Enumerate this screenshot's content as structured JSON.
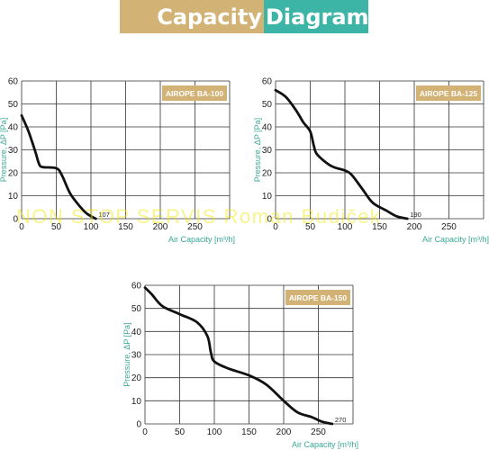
{
  "banner": {
    "left": "Capacity",
    "right": "Diagram"
  },
  "watermark": "NON STOP SERVIS Roman Budiček",
  "colors": {
    "gold": "#d3b275",
    "teal": "#3cb5a6",
    "axis_label": "#3aa896",
    "curve": "#111111"
  },
  "chart_data": [
    {
      "type": "line",
      "legend_box": "AIROPE BA-100",
      "xlabel": "Air Capacity [m³/h]",
      "ylabel": "Pressure, ΔP [Pa]",
      "xlim": [
        0,
        300
      ],
      "ylim": [
        0,
        60
      ],
      "x_ticks": [
        "0",
        "50",
        "100",
        "150",
        "200",
        "250"
      ],
      "y_ticks": [
        "0",
        "10",
        "20",
        "30",
        "40",
        "50",
        "60"
      ],
      "grid": true,
      "end_label": "107",
      "points": [
        [
          0,
          45
        ],
        [
          10,
          38
        ],
        [
          20,
          29
        ],
        [
          25,
          24
        ],
        [
          30,
          22.5
        ],
        [
          50,
          22
        ],
        [
          58,
          19
        ],
        [
          70,
          11
        ],
        [
          85,
          5
        ],
        [
          95,
          2
        ],
        [
          107,
          0
        ]
      ]
    },
    {
      "type": "line",
      "legend_box": "AIROPE BA-125",
      "xlabel": "Air Capacity [m³/h]",
      "ylabel": "Pressure, ΔP [Pa]",
      "xlim": [
        0,
        300
      ],
      "ylim": [
        0,
        60
      ],
      "x_ticks": [
        "0",
        "50",
        "100",
        "150",
        "200",
        "250"
      ],
      "y_ticks": [
        "0",
        "10",
        "20",
        "30",
        "40",
        "50",
        "60"
      ],
      "grid": true,
      "end_label": "190",
      "points": [
        [
          0,
          56
        ],
        [
          15,
          53
        ],
        [
          30,
          47
        ],
        [
          40,
          42
        ],
        [
          50,
          38
        ],
        [
          55,
          32
        ],
        [
          60,
          28
        ],
        [
          80,
          23
        ],
        [
          100,
          21
        ],
        [
          110,
          19
        ],
        [
          125,
          13
        ],
        [
          140,
          7
        ],
        [
          160,
          3.5
        ],
        [
          175,
          1
        ],
        [
          190,
          0
        ]
      ]
    },
    {
      "type": "line",
      "legend_box": "AIROPE BA-150",
      "xlabel": "Air Capacity [m³/h]",
      "ylabel": "Pressure, ΔP [Pa]",
      "xlim": [
        0,
        300
      ],
      "ylim": [
        0,
        60
      ],
      "x_ticks": [
        "0",
        "50",
        "100",
        "150",
        "200",
        "250"
      ],
      "y_ticks": [
        "0",
        "10",
        "20",
        "30",
        "40",
        "50",
        "60"
      ],
      "grid": true,
      "end_label": "270",
      "points": [
        [
          0,
          59
        ],
        [
          10,
          56
        ],
        [
          25,
          51
        ],
        [
          50,
          47.5
        ],
        [
          75,
          44
        ],
        [
          90,
          38
        ],
        [
          95,
          31
        ],
        [
          100,
          27
        ],
        [
          120,
          24
        ],
        [
          150,
          21
        ],
        [
          175,
          17
        ],
        [
          200,
          10
        ],
        [
          220,
          5
        ],
        [
          240,
          3
        ],
        [
          255,
          1
        ],
        [
          270,
          0
        ]
      ]
    }
  ]
}
